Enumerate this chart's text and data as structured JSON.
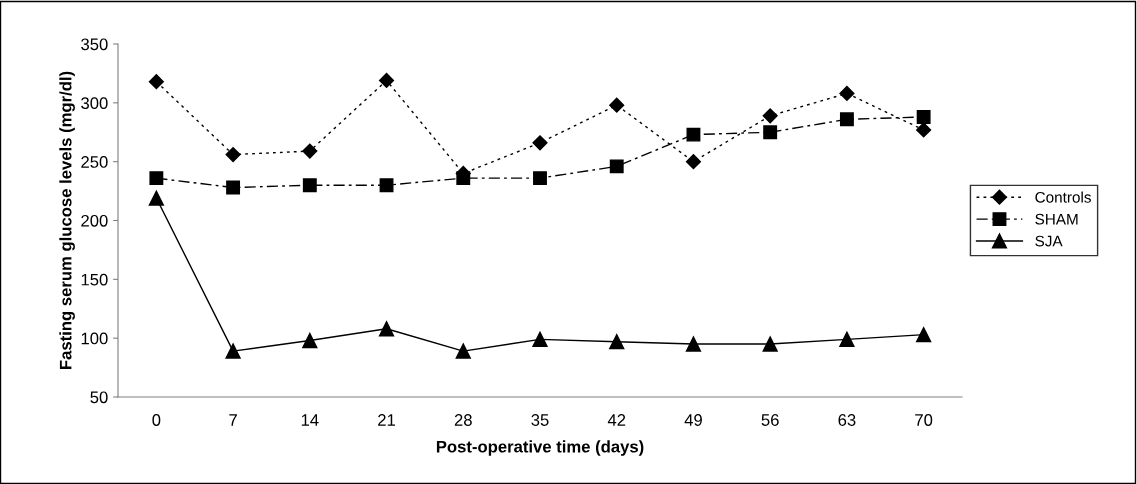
{
  "chart_data": {
    "type": "line",
    "xlabel": "Post-operative time (days)",
    "ylabel": "Fasting serum glucose levels (mgr/dl)",
    "categories": [
      "0",
      "7",
      "14",
      "21",
      "28",
      "35",
      "42",
      "49",
      "56",
      "63",
      "70"
    ],
    "series": [
      {
        "name": "Controls",
        "color": "#000000",
        "marker": "diamond",
        "line_style": "dotted",
        "values": [
          318,
          256,
          259,
          319,
          240,
          266,
          298,
          250,
          289,
          308,
          277
        ]
      },
      {
        "name": "SHAM",
        "color": "#000000",
        "marker": "square",
        "line_style": "dashdot",
        "values": [
          236,
          228,
          230,
          230,
          236,
          236,
          246,
          273,
          275,
          286,
          288
        ]
      },
      {
        "name": "SJA",
        "color": "#000000",
        "marker": "triangle",
        "line_style": "solid",
        "values": [
          219,
          89,
          98,
          108,
          89,
          99,
          97,
          95,
          95,
          99,
          103
        ]
      }
    ],
    "ylim": [
      50,
      350
    ],
    "yticks": [
      50,
      100,
      150,
      200,
      250,
      300,
      350
    ],
    "grid": false,
    "legend": "right"
  }
}
